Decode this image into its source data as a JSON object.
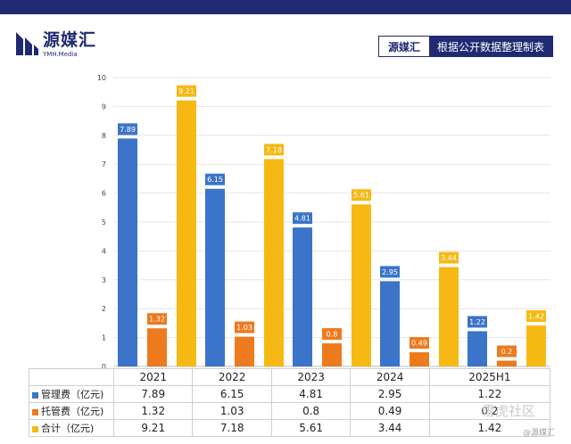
{
  "header": {
    "logo_cn": "源媒汇",
    "logo_en": "YMH.Media",
    "source_brand": "源媒汇",
    "source_note": "根据公开数据整理制表"
  },
  "chart_data": {
    "type": "bar",
    "categories": [
      "2021",
      "2022",
      "2023",
      "2024",
      "2025H1"
    ],
    "ylim": [
      0,
      10
    ],
    "yticks": [
      0,
      1,
      2,
      3,
      4,
      5,
      6,
      7,
      8,
      9,
      10
    ],
    "ytick_labels": [
      "0",
      "1",
      "2",
      "3",
      "4",
      "5",
      "6",
      "7",
      "8",
      "9",
      "10"
    ],
    "grid": true,
    "series": [
      {
        "name": "管理费（亿元)",
        "color": "#3b74c9",
        "values": [
          7.89,
          6.15,
          4.81,
          2.95,
          1.22
        ],
        "labels": [
          "7.89",
          "6.15",
          "4.81",
          "2.95",
          "1.22"
        ]
      },
      {
        "name": "托管费（亿元)",
        "color": "#ee7a1e",
        "values": [
          1.32,
          1.03,
          0.8,
          0.49,
          0.2
        ],
        "labels": [
          "1.32",
          "1.03",
          "0.8",
          "0.49",
          "0.2"
        ]
      },
      {
        "name": "合计（亿元)",
        "color": "#f6b914",
        "values": [
          9.21,
          7.18,
          5.61,
          3.44,
          1.42
        ],
        "labels": [
          "9.21",
          "7.18",
          "5.61",
          "3.44",
          "1.42"
        ]
      }
    ]
  },
  "watermark": {
    "main": "雪虎社区",
    "sub": "@源媒汇"
  }
}
